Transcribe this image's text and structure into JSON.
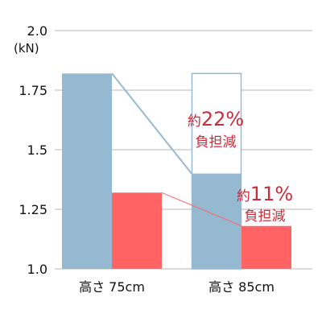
{
  "chart_data": {
    "type": "bar",
    "ylabel": "(kN)",
    "ylim": [
      1.0,
      2.0
    ],
    "yticks": [
      1.0,
      1.25,
      1.5,
      1.75,
      2.0
    ],
    "ytick_labels": [
      "1.0",
      "1.25",
      "1.5",
      "1.75",
      "2.0"
    ],
    "categories": [
      "高さ 75cm",
      "高さ 85cm"
    ],
    "grid": true,
    "series": [
      {
        "values": [
          1.82,
          1.4
        ],
        "color": "#96b9d2"
      },
      {
        "values": [
          1.32,
          1.18
        ],
        "color": "#ff6363"
      }
    ],
    "reference_value": 1.82,
    "annotations": [
      {
        "prefix": "約",
        "value": "22%",
        "suffix": "負担減",
        "color": "#cc2b3a"
      },
      {
        "prefix": "約",
        "value": "11%",
        "suffix": "負担減",
        "color": "#cc2b3a"
      }
    ]
  }
}
